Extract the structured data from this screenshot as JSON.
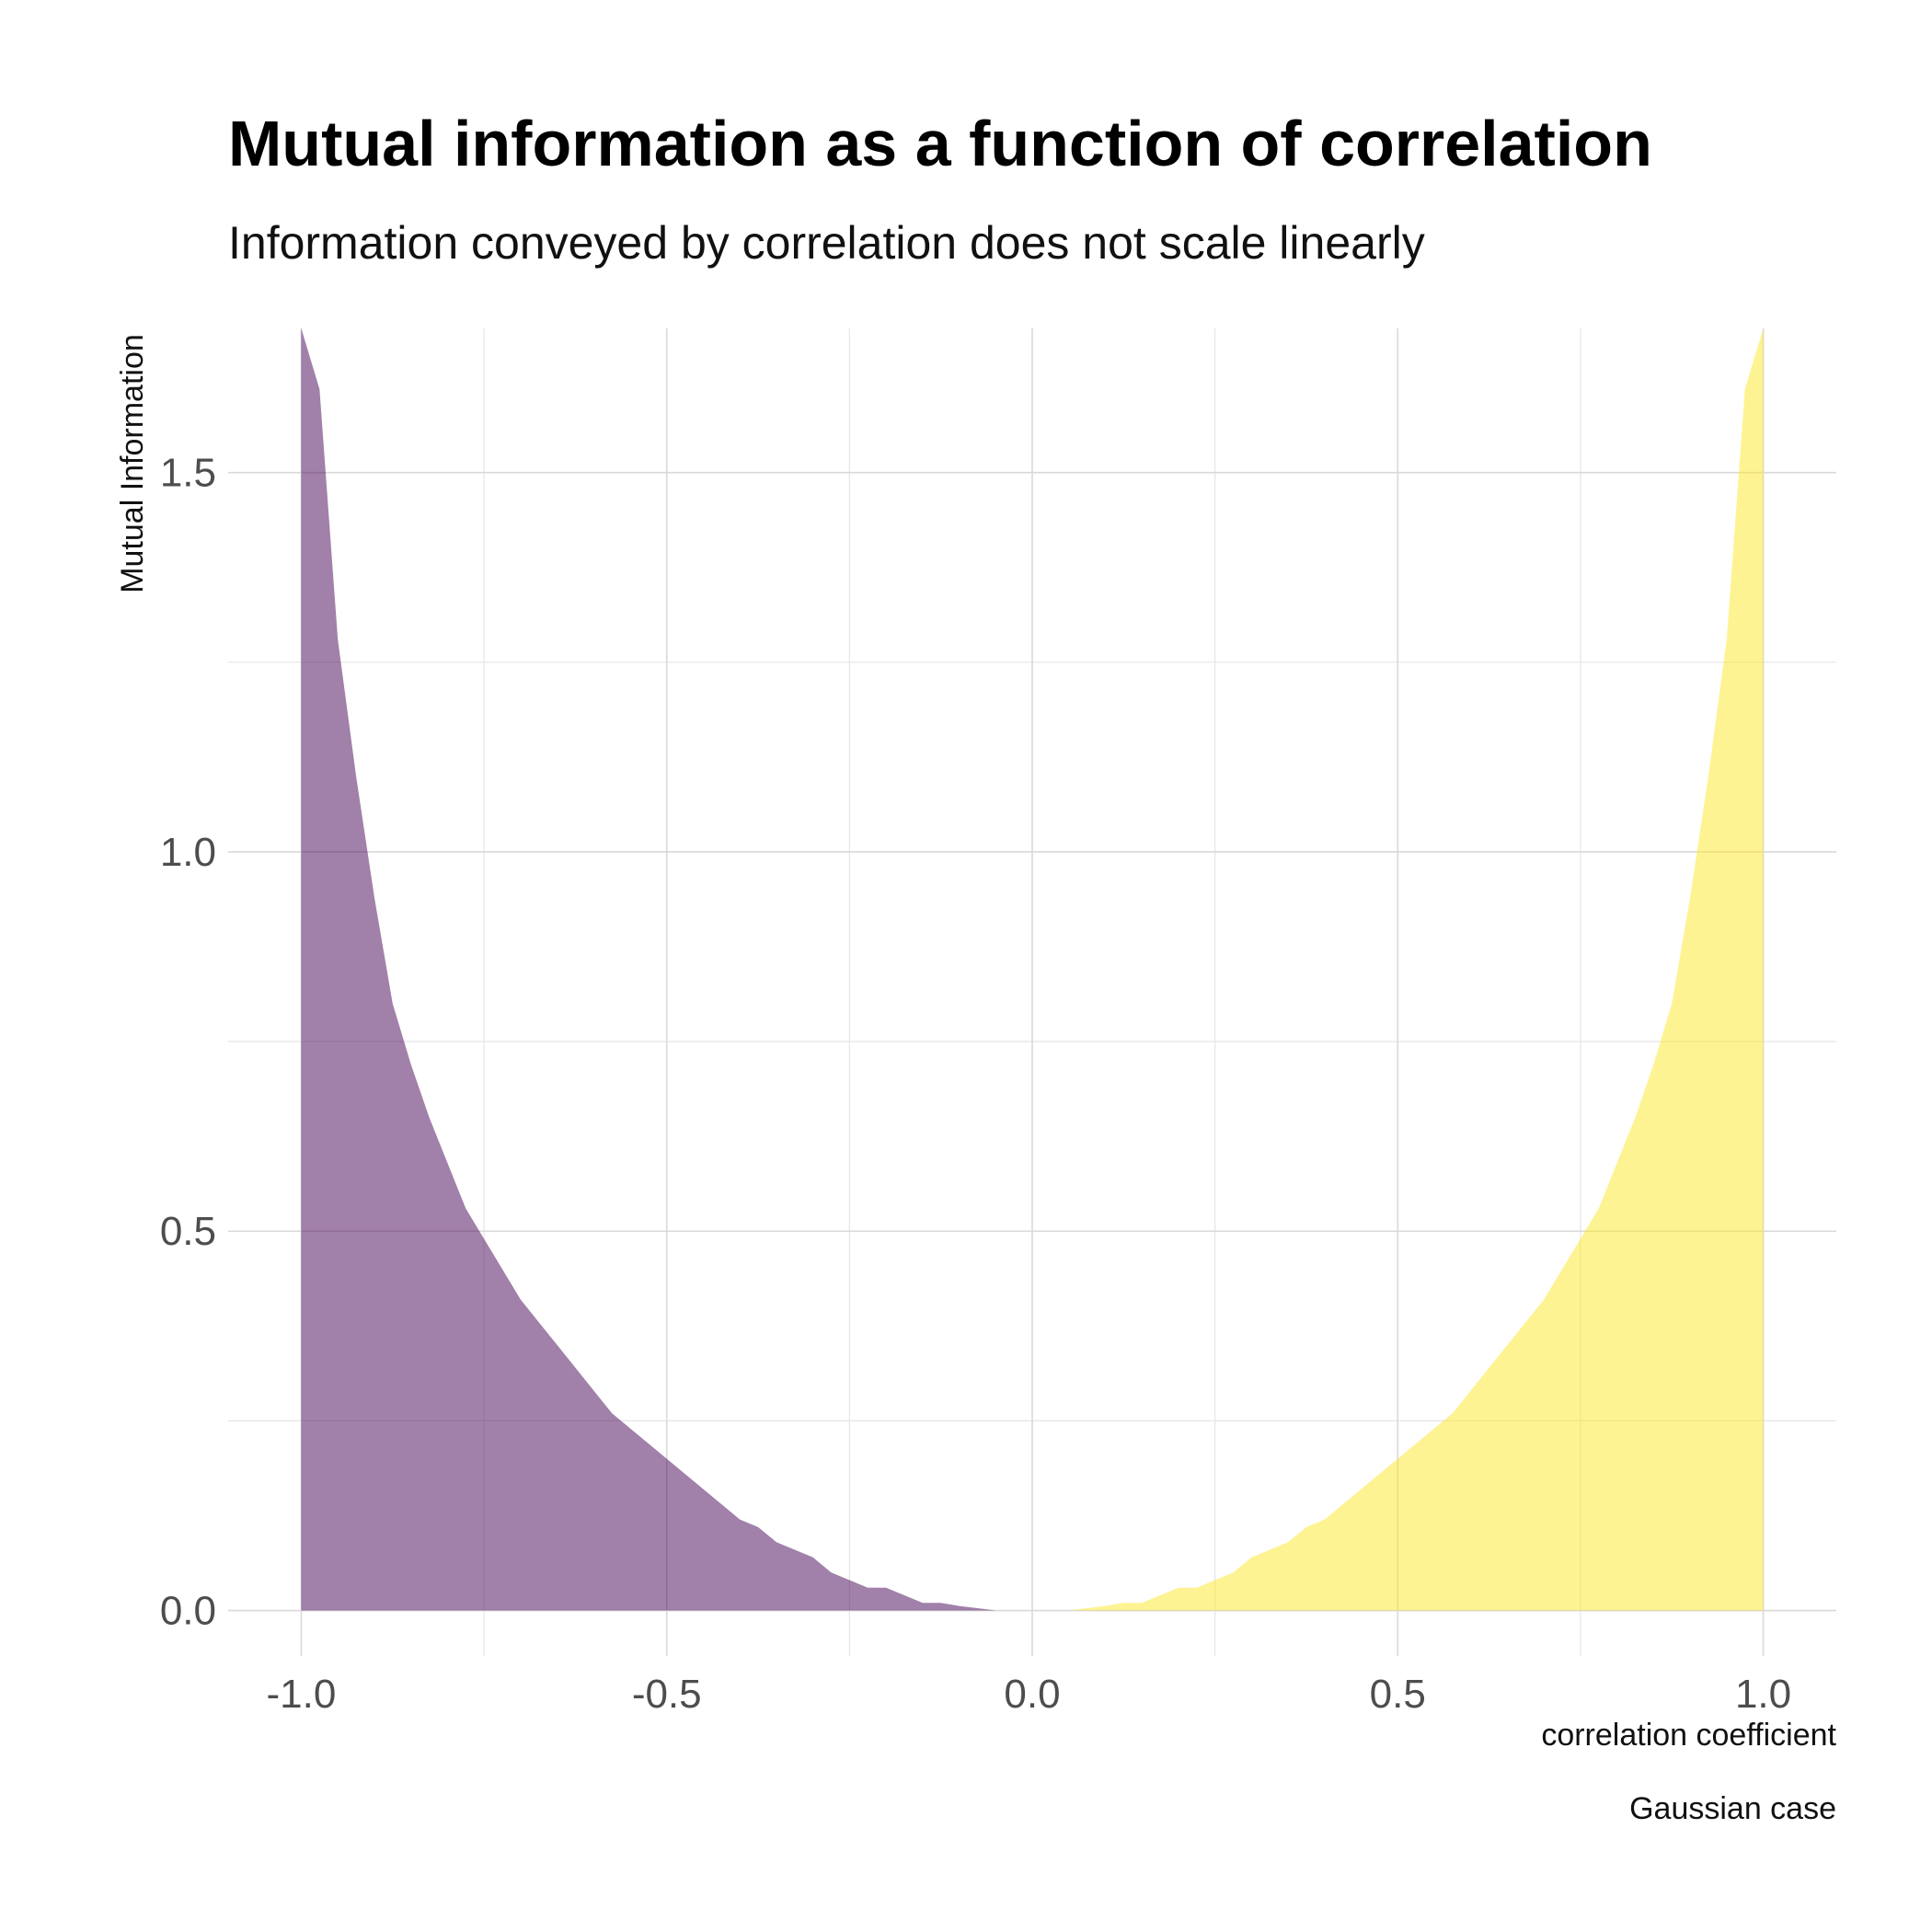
{
  "chart_data": {
    "type": "area",
    "title": "Mutual information as a function of correlation",
    "subtitle": "Information conveyed by correlation does not scale linearly",
    "xlabel": "correlation coefficient",
    "ylabel": "Mutual Information",
    "caption": "Gaussian case",
    "xlim": [
      -1.1,
      1.1
    ],
    "ylim": [
      -0.06,
      1.69
    ],
    "x_ticks": [
      -1.0,
      -0.5,
      0.0,
      0.5,
      1.0
    ],
    "x_tick_labels": [
      "-1.0",
      "-0.5",
      "0.0",
      "0.5",
      "1.0"
    ],
    "y_ticks": [
      0.0,
      0.5,
      1.0,
      1.5
    ],
    "y_tick_labels": [
      "0.0",
      "0.5",
      "1.0",
      "1.5"
    ],
    "grid": true,
    "legend": "none",
    "series": [
      {
        "color": "#440154",
        "opacity": 0.5,
        "x": [
          -1.0,
          -0.975,
          -0.95,
          -0.925,
          -0.9,
          -0.875,
          -0.85,
          -0.825,
          -0.8,
          -0.775,
          -0.75,
          -0.725,
          -0.7,
          -0.675,
          -0.65,
          -0.625,
          -0.6,
          -0.575,
          -0.55,
          -0.525,
          -0.5,
          -0.475,
          -0.45,
          -0.425,
          -0.4,
          -0.375,
          -0.35,
          -0.325,
          -0.3,
          -0.275,
          -0.25,
          -0.225,
          -0.2,
          -0.175,
          -0.15,
          -0.125,
          -0.1,
          -0.075,
          -0.05
        ],
        "values": [
          1.69,
          1.61,
          1.28,
          1.1,
          0.94,
          0.8,
          0.72,
          0.65,
          0.59,
          0.53,
          0.49,
          0.45,
          0.41,
          0.38,
          0.35,
          0.32,
          0.29,
          0.26,
          0.24,
          0.22,
          0.2,
          0.18,
          0.16,
          0.14,
          0.12,
          0.11,
          0.09,
          0.08,
          0.07,
          0.05,
          0.04,
          0.03,
          0.03,
          0.02,
          0.01,
          0.01,
          0.006,
          0.003,
          0.0
        ]
      },
      {
        "color": "#FDE725",
        "opacity": 0.5,
        "x": [
          0.05,
          0.075,
          0.1,
          0.125,
          0.15,
          0.175,
          0.2,
          0.225,
          0.25,
          0.275,
          0.3,
          0.325,
          0.35,
          0.375,
          0.4,
          0.425,
          0.45,
          0.475,
          0.5,
          0.525,
          0.55,
          0.575,
          0.6,
          0.625,
          0.65,
          0.675,
          0.7,
          0.725,
          0.75,
          0.775,
          0.8,
          0.825,
          0.85,
          0.875,
          0.9,
          0.925,
          0.95,
          0.975,
          1.0
        ],
        "values": [
          0.0,
          0.003,
          0.006,
          0.01,
          0.01,
          0.02,
          0.03,
          0.03,
          0.04,
          0.05,
          0.07,
          0.08,
          0.09,
          0.11,
          0.12,
          0.14,
          0.16,
          0.18,
          0.2,
          0.22,
          0.24,
          0.26,
          0.29,
          0.32,
          0.35,
          0.38,
          0.41,
          0.45,
          0.49,
          0.53,
          0.59,
          0.65,
          0.72,
          0.8,
          0.94,
          1.1,
          1.28,
          1.61,
          1.69
        ]
      }
    ]
  }
}
